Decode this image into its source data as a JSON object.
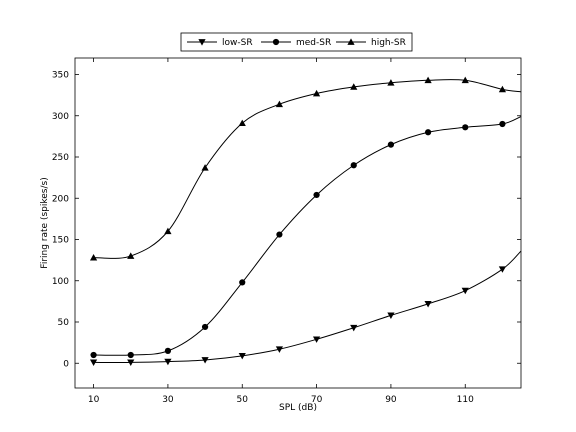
{
  "chart_data": {
    "type": "line",
    "xlabel": "SPL (dB)",
    "ylabel": "Firing rate (spikes/s)",
    "xlim": [
      5,
      125
    ],
    "ylim": [
      -30,
      370
    ],
    "xticks": [
      10,
      30,
      50,
      70,
      90,
      110
    ],
    "yticks": [
      0,
      50,
      100,
      150,
      200,
      250,
      300,
      350
    ],
    "grid": false,
    "legend_position": "top-center",
    "x": [
      10,
      20,
      30,
      40,
      50,
      60,
      70,
      80,
      90,
      100,
      110,
      120,
      125
    ],
    "series": [
      {
        "name": "low-SR",
        "marker": "triangle-down",
        "values": [
          1,
          1,
          2,
          4,
          9,
          17,
          29,
          43,
          58,
          72,
          88,
          114,
          136
        ]
      },
      {
        "name": "med-SR",
        "marker": "circle",
        "values": [
          10,
          10,
          15,
          44,
          98,
          156,
          204,
          240,
          265,
          280,
          286,
          290,
          299
        ]
      },
      {
        "name": "high-SR",
        "marker": "triangle-up",
        "values": [
          128,
          130,
          160,
          237,
          291,
          314,
          327,
          335,
          340,
          343,
          343,
          332,
          329
        ]
      }
    ]
  }
}
